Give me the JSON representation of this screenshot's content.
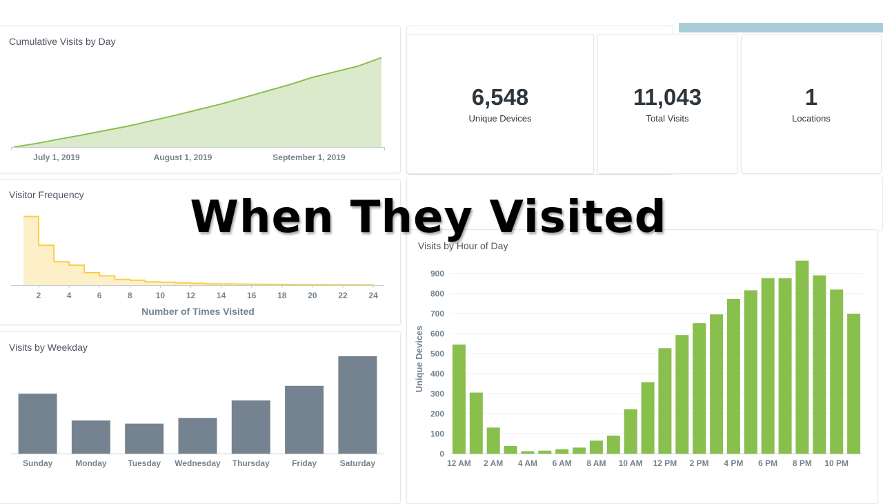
{
  "overlay": {
    "title": "When They Visited"
  },
  "colors": {
    "green": "#88bf4d",
    "green_fill": "#dbeacb",
    "yellow": "#f9cf48",
    "yellow_fill": "#fdf0c8",
    "slate": "#74838f",
    "accent_strip": "#a9cdd7"
  },
  "metrics": [
    {
      "value": "6,548",
      "label": "Unique Devices"
    },
    {
      "value": "11,043",
      "label": "Total Visits"
    },
    {
      "value": "1",
      "label": "Locations"
    }
  ],
  "chart_data": [
    {
      "id": "cumulative",
      "type": "area",
      "title": "Cumulative Visits by Day",
      "x_tick_labels": [
        "July 1, 2019",
        "August 1, 2019",
        "September 1, 2019"
      ],
      "x": [
        "2019-06-15",
        "2019-06-22",
        "2019-06-29",
        "2019-07-06",
        "2019-07-13",
        "2019-07-20",
        "2019-07-27",
        "2019-08-03",
        "2019-08-10",
        "2019-08-17",
        "2019-08-24",
        "2019-08-31",
        "2019-09-07",
        "2019-09-14",
        "2019-09-21",
        "2019-09-28",
        "2019-10-05"
      ],
      "values": [
        0,
        450,
        1000,
        1500,
        2050,
        2600,
        3250,
        3900,
        4600,
        5300,
        6100,
        6900,
        7700,
        8600,
        9300,
        10000,
        11043
      ],
      "ylim": [
        0,
        11500
      ],
      "grid": false
    },
    {
      "id": "frequency",
      "type": "area",
      "step": true,
      "title": "Visitor Frequency",
      "xlabel": "Number of Times Visited",
      "x": [
        1,
        2,
        3,
        4,
        5,
        6,
        7,
        8,
        9,
        10,
        11,
        12,
        13,
        14,
        15,
        16,
        17,
        18,
        19,
        20,
        21,
        22,
        23,
        24
      ],
      "values": [
        3100,
        1800,
        1050,
        900,
        560,
        420,
        260,
        220,
        150,
        130,
        100,
        80,
        60,
        55,
        45,
        40,
        35,
        30,
        25,
        22,
        20,
        18,
        15,
        12
      ],
      "xticks": [
        2,
        4,
        6,
        8,
        10,
        12,
        14,
        16,
        18,
        20,
        22,
        24
      ],
      "xlim": [
        0.9,
        24.5
      ],
      "ylim": [
        0,
        3400
      ]
    },
    {
      "id": "weekday",
      "type": "bar",
      "title": "Visits by Weekday",
      "categories": [
        "Sunday",
        "Monday",
        "Tuesday",
        "Wednesday",
        "Thursday",
        "Friday",
        "Saturday"
      ],
      "values": [
        1680,
        930,
        840,
        1000,
        1490,
        1900,
        2730
      ],
      "ylim": [
        0,
        3000
      ]
    },
    {
      "id": "hourly",
      "type": "bar",
      "title": "Visits by Hour of Day",
      "ylabel": "Unique Devices",
      "categories": [
        "12 AM",
        "1 AM",
        "2 AM",
        "3 AM",
        "4 AM",
        "5 AM",
        "6 AM",
        "7 AM",
        "8 AM",
        "9 AM",
        "10 AM",
        "11 AM",
        "12 PM",
        "1 PM",
        "2 PM",
        "3 PM",
        "4 PM",
        "5 PM",
        "6 PM",
        "7 PM",
        "8 PM",
        "9 PM",
        "10 PM",
        "11 PM"
      ],
      "x_tick_labels": [
        "12 AM",
        "2 AM",
        "4 AM",
        "6 AM",
        "8 AM",
        "10 AM",
        "12 PM",
        "2 PM",
        "4 PM",
        "6 PM",
        "8 PM",
        "10 PM"
      ],
      "values": [
        545,
        305,
        130,
        38,
        12,
        15,
        22,
        30,
        65,
        90,
        222,
        357,
        527,
        593,
        652,
        696,
        773,
        816,
        876,
        876,
        964,
        891,
        820,
        698
      ],
      "yticks": [
        0,
        100,
        200,
        300,
        400,
        500,
        600,
        700,
        800,
        900
      ],
      "ylim": [
        0,
        980
      ],
      "grid": true
    }
  ]
}
